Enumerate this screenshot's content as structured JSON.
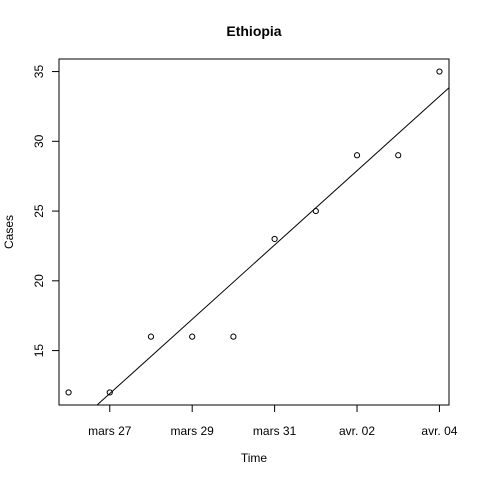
{
  "chart_data": {
    "type": "scatter",
    "title": "Ethiopia",
    "xlabel": "Time",
    "ylabel": "Cases",
    "x": [
      "2020-03-26",
      "2020-03-27",
      "2020-03-28",
      "2020-03-29",
      "2020-03-30",
      "2020-03-31",
      "2020-04-01",
      "2020-04-02",
      "2020-04-03",
      "2020-04-04"
    ],
    "y": [
      12,
      12,
      16,
      16,
      16,
      23,
      25,
      29,
      29,
      35
    ],
    "xlim": [
      "2020-03-25 18:26",
      "2020-04-04 05:34"
    ],
    "ylim": [
      11.1,
      35.9
    ],
    "x_ticks": [
      {
        "date": "2020-03-27",
        "label": "mars 27"
      },
      {
        "date": "2020-03-29",
        "label": "mars 29"
      },
      {
        "date": "2020-03-31",
        "label": "mars 31"
      },
      {
        "date": "2020-04-02",
        "label": "avr. 02"
      },
      {
        "date": "2020-04-04",
        "label": "avr. 04"
      }
    ],
    "y_ticks": [
      15,
      20,
      25,
      30,
      35
    ],
    "fit_line": {
      "start": {
        "x": "2020-03-25 18:26",
        "y": 8.64
      },
      "end": {
        "x": "2020-04-04 05:34",
        "y": 33.84
      }
    },
    "grid": false,
    "legend": "none",
    "colors": {
      "points": "#000000",
      "line": "#000000",
      "axes": "#000000",
      "background": "#ffffff"
    }
  }
}
